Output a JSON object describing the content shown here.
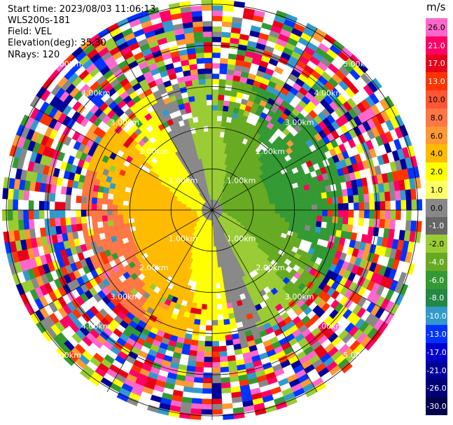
{
  "info": {
    "start_time": "Start time: 2023/08/03 11:06:13",
    "instrument": "WLS200s-181",
    "field": "Field: VEL",
    "elevation": "Elevation(deg): 35.30",
    "nrays": "NRays: 120"
  },
  "colorbar": {
    "unit": "m/s",
    "levels": [
      {
        "label": "26.0",
        "color": "#ff66cc"
      },
      {
        "label": "21.0",
        "color": "#ff0066"
      },
      {
        "label": "17.0",
        "color": "#e8001a"
      },
      {
        "label": "13.0",
        "color": "#ff3300"
      },
      {
        "label": "10.0",
        "color": "#ff5533"
      },
      {
        "label": "8.0",
        "color": "#ff7744"
      },
      {
        "label": "6.0",
        "color": "#ff9933"
      },
      {
        "label": "4.0",
        "color": "#ffbb00"
      },
      {
        "label": "2.0",
        "color": "#ffff00"
      },
      {
        "label": "1.0",
        "color": "#ffff66"
      },
      {
        "label": "0.0",
        "color": "#888888"
      },
      {
        "label": "-1.0",
        "color": "#666666"
      },
      {
        "label": "-2.0",
        "color": "#99cc33"
      },
      {
        "label": "-4.0",
        "color": "#66aa22"
      },
      {
        "label": "-6.0",
        "color": "#339933"
      },
      {
        "label": "-8.0",
        "color": "#228844"
      },
      {
        "label": "-10.0",
        "color": "#3399cc"
      },
      {
        "label": "-13.0",
        "color": "#0033ff"
      },
      {
        "label": "-17.0",
        "color": "#0000cc"
      },
      {
        "label": "-21.0",
        "color": "#000099"
      },
      {
        "label": "-26.0",
        "color": "#000077"
      },
      {
        "label": "-30.0",
        "color": "#00004d"
      }
    ]
  },
  "range_rings": {
    "labels": [
      "1.00km",
      "2.00km",
      "3.00km",
      "4.00km",
      "5.00km"
    ]
  },
  "chart_data": {
    "type": "heatmap",
    "title": "",
    "field": "VEL",
    "elevation_deg": 35.3,
    "nrays": 120,
    "range_rings_km": [
      1,
      2,
      3,
      4,
      5
    ],
    "max_range_km": 5.0
  }
}
